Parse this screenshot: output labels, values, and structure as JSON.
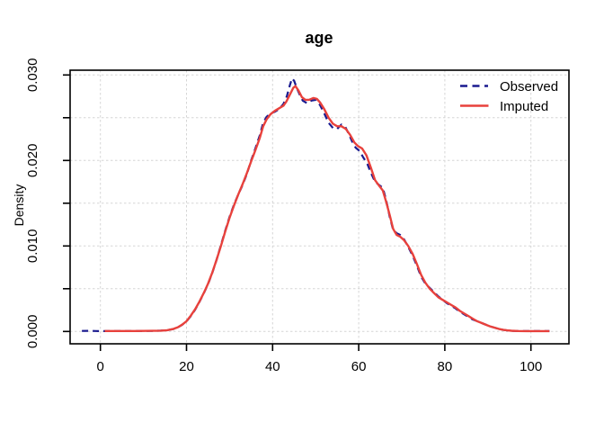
{
  "title": "age",
  "ylabel": "Density",
  "legend": {
    "observed_label": "Observed",
    "imputed_label": "Imputed"
  },
  "colors": {
    "observed": "#1A1A8F",
    "imputed": "#E8413C",
    "grid": "#D6D6D6",
    "axis": "#000000"
  },
  "chart_data": {
    "type": "line",
    "title": "age",
    "xlabel": "",
    "ylabel": "Density",
    "xlim": [
      -7,
      109
    ],
    "ylim": [
      -0.0014,
      0.0305
    ],
    "grid": true,
    "legend_position": "top-right",
    "x_ticks": [
      0,
      20,
      40,
      60,
      80,
      100
    ],
    "x_tick_labels": [
      "0",
      "20",
      "40",
      "60",
      "80",
      "100"
    ],
    "y_ticks": [
      0,
      0.005,
      0.01,
      0.015,
      0.02,
      0.025,
      0.03
    ],
    "y_tick_labels": [
      "0.000",
      "",
      "0.010",
      "",
      "0.020",
      "",
      "0.030"
    ],
    "series": [
      {
        "name": "Observed",
        "style": "dashed",
        "points": [
          [
            -4.3,
            6e-05
          ],
          [
            -2.5,
            7e-05
          ],
          [
            -1,
            5e-05
          ],
          [
            0,
            4e-05
          ],
          [
            3,
            4e-05
          ],
          [
            8,
            5e-05
          ],
          [
            12,
            7e-05
          ],
          [
            14,
            0.0001
          ],
          [
            15.5,
            0.00015
          ],
          [
            17,
            0.00028
          ],
          [
            18,
            0.00048
          ],
          [
            19,
            0.00078
          ],
          [
            20,
            0.00118
          ],
          [
            21,
            0.0018
          ],
          [
            22,
            0.00255
          ],
          [
            23,
            0.00345
          ],
          [
            24,
            0.00445
          ],
          [
            25,
            0.00555
          ],
          [
            26,
            0.00685
          ],
          [
            27,
            0.0084
          ],
          [
            28,
            0.0101
          ],
          [
            29,
            0.0118
          ],
          [
            30,
            0.0134
          ],
          [
            31,
            0.0148
          ],
          [
            32,
            0.016
          ],
          [
            33,
            0.0171
          ],
          [
            34,
            0.0184
          ],
          [
            35,
            0.02
          ],
          [
            36,
            0.0214
          ],
          [
            37,
            0.0229
          ],
          [
            37.8,
            0.0244
          ],
          [
            38.6,
            0.0251
          ],
          [
            39.5,
            0.0255
          ],
          [
            40.5,
            0.0257
          ],
          [
            41.5,
            0.026
          ],
          [
            42.5,
            0.0266
          ],
          [
            43.3,
            0.0275
          ],
          [
            44,
            0.0288
          ],
          [
            44.5,
            0.0296
          ],
          [
            45,
            0.0293
          ],
          [
            45.6,
            0.0285
          ],
          [
            46.3,
            0.0277
          ],
          [
            47,
            0.027
          ],
          [
            48,
            0.0267
          ],
          [
            49,
            0.027
          ],
          [
            50,
            0.0271
          ],
          [
            51,
            0.0265
          ],
          [
            52,
            0.0255
          ],
          [
            53,
            0.0244
          ],
          [
            54,
            0.0238
          ],
          [
            55,
            0.0237
          ],
          [
            56,
            0.0242
          ],
          [
            56.8,
            0.024
          ],
          [
            57.6,
            0.0232
          ],
          [
            58.5,
            0.0222
          ],
          [
            59.3,
            0.0215
          ],
          [
            60.2,
            0.0211
          ],
          [
            61,
            0.0204
          ],
          [
            62,
            0.0196
          ],
          [
            62.8,
            0.0186
          ],
          [
            63.8,
            0.0175
          ],
          [
            64.8,
            0.0171
          ],
          [
            65.6,
            0.0168
          ],
          [
            66.4,
            0.0153
          ],
          [
            67.2,
            0.0134
          ],
          [
            68,
            0.0119
          ],
          [
            68.8,
            0.0115
          ],
          [
            69.6,
            0.0113
          ],
          [
            70.5,
            0.0108
          ],
          [
            71.5,
            0.0099
          ],
          [
            72.5,
            0.0089
          ],
          [
            73.5,
            0.0077
          ],
          [
            74.5,
            0.0064
          ],
          [
            75.5,
            0.0056
          ],
          [
            76.5,
            0.0051
          ],
          [
            77.5,
            0.0046
          ],
          [
            78.5,
            0.0041
          ],
          [
            79.5,
            0.0037
          ],
          [
            80.5,
            0.0033
          ],
          [
            81.5,
            0.003
          ],
          [
            82.5,
            0.0027
          ],
          [
            83.5,
            0.0023
          ],
          [
            84.5,
            0.002
          ],
          [
            85.5,
            0.0017
          ],
          [
            86.5,
            0.0014
          ],
          [
            87.5,
            0.0012
          ],
          [
            88.5,
            0.001
          ],
          [
            89.5,
            0.0008
          ],
          [
            90.5,
            0.0006
          ],
          [
            91.5,
            0.00045
          ],
          [
            92.5,
            0.0003
          ],
          [
            93.5,
            0.0002
          ],
          [
            94.5,
            0.00012
          ],
          [
            95.5,
            7e-05
          ],
          [
            97,
            5e-05
          ],
          [
            99,
            4e-05
          ],
          [
            101,
            4e-05
          ],
          [
            104.3,
            4e-05
          ]
        ]
      },
      {
        "name": "Imputed",
        "style": "solid",
        "points": [
          [
            1,
            5e-05
          ],
          [
            4,
            5e-05
          ],
          [
            8,
            5e-05
          ],
          [
            12,
            7e-05
          ],
          [
            14,
            0.0001
          ],
          [
            15.5,
            0.00015
          ],
          [
            17,
            0.0003
          ],
          [
            18,
            0.0005
          ],
          [
            19,
            0.0008
          ],
          [
            20,
            0.0012
          ],
          [
            21,
            0.00185
          ],
          [
            22,
            0.0026
          ],
          [
            23,
            0.0035
          ],
          [
            24,
            0.0045
          ],
          [
            25,
            0.0056
          ],
          [
            26,
            0.0069
          ],
          [
            27,
            0.0084
          ],
          [
            28,
            0.01
          ],
          [
            29,
            0.0117
          ],
          [
            30,
            0.0133
          ],
          [
            31,
            0.0147
          ],
          [
            32,
            0.016
          ],
          [
            33,
            0.0172
          ],
          [
            34,
            0.0185
          ],
          [
            35,
            0.0199
          ],
          [
            36,
            0.0212
          ],
          [
            37,
            0.0226
          ],
          [
            37.8,
            0.024
          ],
          [
            38.6,
            0.0248
          ],
          [
            39.5,
            0.0254
          ],
          [
            40.5,
            0.0258
          ],
          [
            41.5,
            0.0261
          ],
          [
            42.5,
            0.0264
          ],
          [
            43.2,
            0.0269
          ],
          [
            44,
            0.0277
          ],
          [
            44.8,
            0.0285
          ],
          [
            45.3,
            0.0287
          ],
          [
            46,
            0.0282
          ],
          [
            46.8,
            0.0274
          ],
          [
            47.6,
            0.0271
          ],
          [
            48.5,
            0.0271
          ],
          [
            49.5,
            0.0273
          ],
          [
            50.3,
            0.0272
          ],
          [
            51,
            0.0268
          ],
          [
            52,
            0.026
          ],
          [
            53,
            0.025
          ],
          [
            54,
            0.0243
          ],
          [
            55,
            0.024
          ],
          [
            56,
            0.024
          ],
          [
            57,
            0.0237
          ],
          [
            58,
            0.023
          ],
          [
            59,
            0.0221
          ],
          [
            59.8,
            0.0217
          ],
          [
            60.8,
            0.0214
          ],
          [
            61.8,
            0.0206
          ],
          [
            62.8,
            0.0192
          ],
          [
            63.8,
            0.0177
          ],
          [
            64.8,
            0.017
          ],
          [
            65.6,
            0.0165
          ],
          [
            66.4,
            0.0151
          ],
          [
            67.2,
            0.0136
          ],
          [
            68,
            0.012
          ],
          [
            68.8,
            0.0113
          ],
          [
            69.6,
            0.0111
          ],
          [
            70.5,
            0.0107
          ],
          [
            71.5,
            0.01
          ],
          [
            72.5,
            0.0091
          ],
          [
            73.5,
            0.0079
          ],
          [
            74.5,
            0.0066
          ],
          [
            75.5,
            0.0057
          ],
          [
            76.5,
            0.005
          ],
          [
            77.5,
            0.0045
          ],
          [
            78.5,
            0.004
          ],
          [
            79.5,
            0.0037
          ],
          [
            80.5,
            0.0034
          ],
          [
            81.5,
            0.0031
          ],
          [
            82.5,
            0.0028
          ],
          [
            83.5,
            0.0024
          ],
          [
            84.5,
            0.0021
          ],
          [
            85.5,
            0.0018
          ],
          [
            86.5,
            0.0015
          ],
          [
            87.5,
            0.0012
          ],
          [
            88.5,
            0.001
          ],
          [
            89.5,
            0.0008
          ],
          [
            90.5,
            0.0006
          ],
          [
            91.5,
            0.00045
          ],
          [
            92.5,
            0.0003
          ],
          [
            93.5,
            0.0002
          ],
          [
            94.5,
            0.00013
          ],
          [
            95.5,
            8e-05
          ],
          [
            97,
            5e-05
          ],
          [
            99,
            4e-05
          ],
          [
            101,
            4e-05
          ],
          [
            104.3,
            4e-05
          ]
        ]
      }
    ]
  }
}
